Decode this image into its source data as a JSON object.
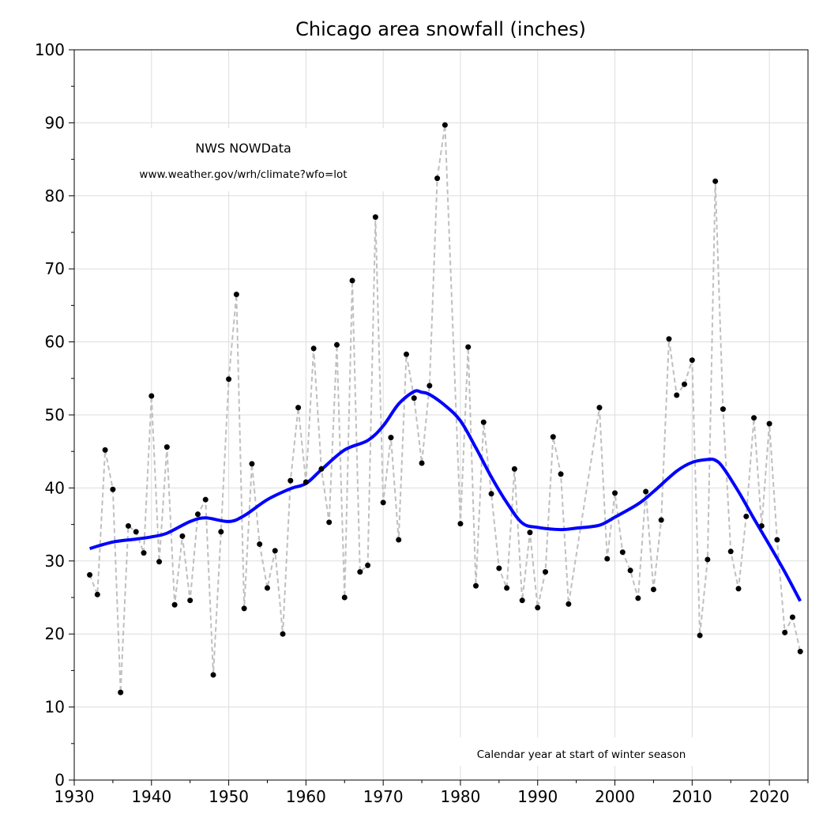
{
  "chart_data": {
    "type": "line",
    "title": "Chicago area snowfall (inches)",
    "xlabel": "",
    "ylabel": "",
    "xlim": [
      1930,
      2025
    ],
    "ylim": [
      0,
      100
    ],
    "grid": true,
    "x_ticks": [
      "1930",
      "1940",
      "1950",
      "1960",
      "1970",
      "1980",
      "1990",
      "2000",
      "2010",
      "2020"
    ],
    "y_ticks": [
      "0",
      "10",
      "20",
      "30",
      "40",
      "50",
      "60",
      "70",
      "80",
      "90",
      "100"
    ],
    "annotations": {
      "source_title": "NWS NOWData",
      "source_url": "www.weather.gov/wrh/climate?wfo=lot",
      "note": "Calendar year at start of winter season"
    },
    "colors": {
      "observed": "#000000",
      "observed_line": "#bfbfbf",
      "trend": "#0000ff",
      "grid": "#dddddd"
    },
    "series": [
      {
        "style": "dashed-gray-with-black-dots",
        "x": [
          1932,
          1933,
          1934,
          1935,
          1936,
          1937,
          1938,
          1939,
          1940,
          1941,
          1942,
          1943,
          1944,
          1945,
          1946,
          1947,
          1948,
          1949,
          1950,
          1951,
          1952,
          1953,
          1954,
          1955,
          1956,
          1957,
          1958,
          1959,
          1960,
          1961,
          1962,
          1963,
          1964,
          1965,
          1966,
          1967,
          1968,
          1969,
          1970,
          1971,
          1972,
          1973,
          1974,
          1975,
          1976,
          1977,
          1978,
          1980,
          1981,
          1982,
          1983,
          1984,
          1985,
          1986,
          1987,
          1988,
          1989,
          1990,
          1991,
          1992,
          1993,
          1994,
          1998,
          1999,
          2000,
          2001,
          2002,
          2003,
          2004,
          2005,
          2006,
          2007,
          2008,
          2009,
          2010,
          2011,
          2012,
          2013,
          2014,
          2015,
          2016,
          2017,
          2018,
          2019,
          2020,
          2021,
          2022,
          2023,
          2024
        ],
        "values": [
          28.1,
          25.4,
          45.2,
          39.8,
          12.0,
          34.8,
          34.0,
          31.1,
          52.6,
          29.9,
          45.6,
          24.0,
          33.4,
          24.6,
          36.4,
          38.4,
          14.4,
          34.0,
          54.9,
          66.5,
          23.5,
          43.3,
          32.3,
          26.3,
          31.4,
          20.0,
          41.0,
          51.0,
          40.8,
          59.1,
          42.6,
          35.3,
          59.6,
          25.0,
          68.4,
          28.5,
          29.4,
          77.1,
          38.0,
          46.9,
          32.9,
          58.3,
          52.3,
          43.4,
          54.0,
          82.4,
          89.7,
          35.1,
          59.3,
          26.6,
          49.0,
          39.2,
          29.0,
          26.3,
          42.6,
          24.6,
          33.9,
          23.6,
          28.5,
          47.0,
          41.9,
          24.1,
          51.0,
          30.3,
          39.3,
          31.2,
          28.7,
          24.9,
          39.5,
          26.1,
          35.6,
          60.4,
          52.7,
          54.2,
          57.5,
          19.8,
          30.2,
          82.0,
          50.8,
          31.3,
          26.2,
          36.1,
          49.6,
          34.8,
          48.8,
          32.9,
          20.2,
          22.3,
          17.6
        ]
      },
      {
        "style": "solid-blue-smoothed",
        "x": [
          1932,
          1935,
          1938,
          1940,
          1942,
          1945,
          1947,
          1950,
          1952,
          1955,
          1958,
          1960,
          1962,
          1965,
          1968,
          1970,
          1972,
          1974,
          1975,
          1976,
          1978,
          1980,
          1982,
          1984,
          1986,
          1988,
          1990,
          1993,
          1995,
          1998,
          2000,
          2003,
          2005,
          2008,
          2010,
          2012,
          2013,
          2014,
          2016,
          2018,
          2020,
          2022,
          2024
        ],
        "values": [
          31.7,
          32.6,
          33.0,
          33.3,
          33.8,
          35.4,
          35.9,
          35.4,
          36.2,
          38.4,
          39.9,
          40.6,
          42.5,
          45.2,
          46.5,
          48.5,
          51.5,
          53.2,
          53.1,
          52.8,
          51.3,
          49.2,
          45.5,
          41.5,
          38.0,
          35.2,
          34.6,
          34.3,
          34.5,
          34.9,
          36.0,
          37.8,
          39.5,
          42.3,
          43.5,
          43.9,
          43.8,
          42.8,
          39.5,
          35.8,
          32.2,
          28.5,
          24.5
        ]
      }
    ]
  }
}
